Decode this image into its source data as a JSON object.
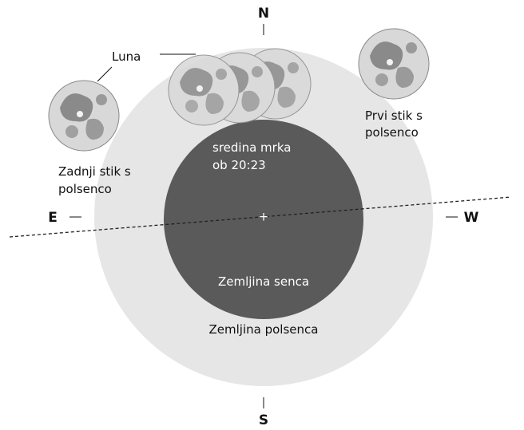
{
  "compass": {
    "north": "N",
    "south": "S",
    "east": "E",
    "west": "W"
  },
  "labels": {
    "moon": "Luna",
    "last_contact": [
      "Zadnji stik s",
      "polsenco"
    ],
    "first_contact": [
      "Prvi stik s",
      "polsenco"
    ],
    "mid_eclipse": [
      "sredina mrka",
      "ob 20:23"
    ],
    "umbra": "Zemljina senca",
    "penumbra": "Zemljina polsenca"
  }
}
